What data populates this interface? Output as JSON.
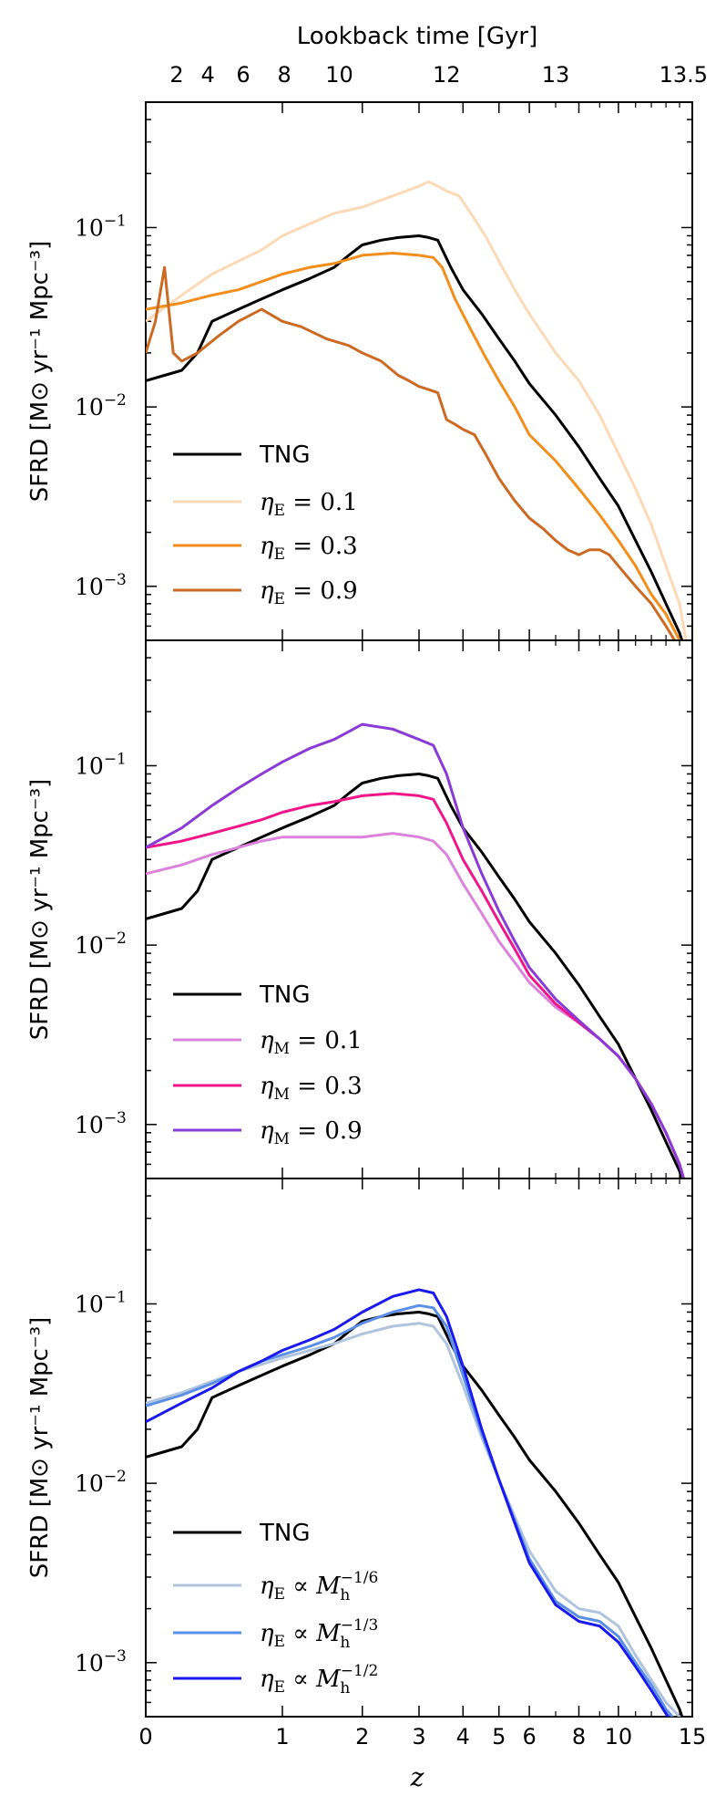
{
  "chart_data": {
    "type": "line",
    "top_axis": {
      "label": "Lookback time [Gyr]",
      "ticks": [
        {
          "label": "2",
          "z": 0.17
        },
        {
          "label": "4",
          "z": 0.37
        },
        {
          "label": "6",
          "z": 0.64
        },
        {
          "label": "8",
          "z": 1.02
        },
        {
          "label": "10",
          "z": 1.67
        },
        {
          "label": "12",
          "z": 3.6
        },
        {
          "label": "13",
          "z": 7.0
        },
        {
          "label": "13.5",
          "z": 14.3
        }
      ]
    },
    "x_axis": {
      "label": "z",
      "scale": "log(1+z)",
      "range": [
        0,
        15
      ],
      "ticks": [
        "0",
        "1",
        "2",
        "3",
        "4",
        "5",
        "6",
        "8",
        "10",
        "15"
      ],
      "tick_values": [
        0,
        1,
        2,
        3,
        4,
        5,
        6,
        8,
        10,
        15
      ]
    },
    "y_axis": {
      "label": "SFRD [M⊙ yr⁻¹ Mpc⁻³]",
      "scale": "log",
      "range": [
        0.0005,
        0.5
      ],
      "ticks": [
        {
          "base": "10",
          "exp": "−1",
          "value": 0.1
        },
        {
          "base": "10",
          "exp": "−2",
          "value": 0.01
        },
        {
          "base": "10",
          "exp": "−3",
          "value": 0.001
        }
      ]
    },
    "panels": [
      {
        "legend_position": "lower-left",
        "series": [
          {
            "name": "TNG",
            "color": "#000000",
            "x": [
              0,
              0.1,
              0.2,
              0.3,
              0.4,
              0.6,
              0.8,
              1.0,
              1.3,
              1.6,
              1.8,
              2.0,
              2.3,
              2.6,
              3.0,
              3.2,
              3.4,
              3.7,
              4.0,
              4.5,
              5.0,
              5.5,
              6.0,
              7.0,
              8.0,
              9.0,
              10.0,
              11.0,
              12.0,
              13.0,
              14.0,
              14.4
            ],
            "y": [
              0.014,
              0.015,
              0.016,
              0.02,
              0.03,
              0.035,
              0.04,
              0.045,
              0.052,
              0.06,
              0.07,
              0.08,
              0.085,
              0.088,
              0.09,
              0.088,
              0.085,
              0.06,
              0.045,
              0.033,
              0.024,
              0.018,
              0.0135,
              0.009,
              0.006,
              0.004,
              0.0028,
              0.0018,
              0.0012,
              0.0008,
              0.00055,
              0.00045
            ]
          },
          {
            "name": "ηE = 0.1",
            "color": "#fdd9b5",
            "x": [
              0,
              0.2,
              0.4,
              0.6,
              0.8,
              1.0,
              1.3,
              1.6,
              2.0,
              2.5,
              3.0,
              3.2,
              3.4,
              3.6,
              3.9,
              4.2,
              4.6,
              5.0,
              5.5,
              6.0,
              7.0,
              8.0,
              9.0,
              10.0,
              11.0,
              12.0,
              13.0,
              14.0,
              14.5
            ],
            "y": [
              0.03,
              0.042,
              0.055,
              0.065,
              0.075,
              0.09,
              0.105,
              0.12,
              0.13,
              0.15,
              0.17,
              0.18,
              0.17,
              0.16,
              0.15,
              0.12,
              0.09,
              0.065,
              0.045,
              0.033,
              0.02,
              0.014,
              0.009,
              0.0055,
              0.0035,
              0.0022,
              0.0013,
              0.0008,
              0.0005
            ]
          },
          {
            "name": "ηE = 0.3",
            "color": "#f28e1c",
            "x": [
              0,
              0.2,
              0.4,
              0.6,
              0.8,
              1.0,
              1.3,
              1.6,
              2.0,
              2.5,
              3.0,
              3.3,
              3.5,
              3.8,
              4.2,
              4.6,
              5.0,
              5.5,
              6.0,
              7.0,
              8.0,
              9.0,
              10.0,
              11.0,
              12.0,
              13.0,
              14.0,
              14.5
            ],
            "y": [
              0.035,
              0.038,
              0.042,
              0.045,
              0.05,
              0.055,
              0.06,
              0.063,
              0.07,
              0.072,
              0.07,
              0.068,
              0.06,
              0.04,
              0.027,
              0.019,
              0.014,
              0.01,
              0.007,
              0.005,
              0.0035,
              0.0025,
              0.0018,
              0.0013,
              0.0009,
              0.0007,
              0.0005,
              0.0004
            ]
          },
          {
            "name": "ηE = 0.9",
            "color": "#cc6a22",
            "x": [
              0,
              0.05,
              0.1,
              0.15,
              0.2,
              0.3,
              0.45,
              0.6,
              0.8,
              1.0,
              1.2,
              1.5,
              1.8,
              2.0,
              2.3,
              2.6,
              2.8,
              3.0,
              3.2,
              3.4,
              3.6,
              3.8,
              4.0,
              4.3,
              4.6,
              5.0,
              5.5,
              6.0,
              6.5,
              7.0,
              7.5,
              8.0,
              8.5,
              9.0,
              9.5,
              10.0,
              11.0,
              12.0,
              13.0,
              14.0,
              14.5
            ],
            "y": [
              0.02,
              0.03,
              0.06,
              0.02,
              0.018,
              0.02,
              0.025,
              0.03,
              0.035,
              0.03,
              0.028,
              0.024,
              0.022,
              0.02,
              0.018,
              0.015,
              0.014,
              0.013,
              0.0125,
              0.012,
              0.0085,
              0.008,
              0.0075,
              0.007,
              0.0055,
              0.004,
              0.003,
              0.0024,
              0.0021,
              0.0018,
              0.0016,
              0.0015,
              0.0016,
              0.0016,
              0.0015,
              0.0013,
              0.001,
              0.0008,
              0.0006,
              0.00045,
              0.0004
            ]
          }
        ]
      },
      {
        "legend_position": "lower-left",
        "series": [
          {
            "name": "TNG",
            "color": "#000000",
            "x": [
              0,
              0.1,
              0.2,
              0.3,
              0.4,
              0.6,
              0.8,
              1.0,
              1.3,
              1.6,
              1.8,
              2.0,
              2.3,
              2.6,
              3.0,
              3.2,
              3.4,
              3.7,
              4.0,
              4.5,
              5.0,
              5.5,
              6.0,
              7.0,
              8.0,
              9.0,
              10.0,
              11.0,
              12.0,
              13.0,
              14.0,
              14.4
            ],
            "y": [
              0.014,
              0.015,
              0.016,
              0.02,
              0.03,
              0.035,
              0.04,
              0.045,
              0.052,
              0.06,
              0.07,
              0.08,
              0.085,
              0.088,
              0.09,
              0.088,
              0.085,
              0.06,
              0.045,
              0.033,
              0.024,
              0.018,
              0.0135,
              0.009,
              0.006,
              0.004,
              0.0028,
              0.0018,
              0.0012,
              0.0008,
              0.00055,
              0.00045
            ]
          },
          {
            "name": "ηM = 0.1",
            "color": "#dc82dc",
            "x": [
              0,
              0.2,
              0.4,
              0.6,
              0.8,
              1.0,
              1.3,
              1.6,
              2.0,
              2.5,
              3.0,
              3.3,
              3.6,
              4.0,
              4.5,
              5.0,
              5.5,
              6.0,
              7.0,
              8.0,
              9.0,
              10.0,
              11.0,
              12.0,
              13.0,
              14.0,
              14.5
            ],
            "y": [
              0.025,
              0.028,
              0.032,
              0.035,
              0.038,
              0.04,
              0.04,
              0.04,
              0.04,
              0.042,
              0.04,
              0.038,
              0.032,
              0.022,
              0.015,
              0.0105,
              0.008,
              0.0062,
              0.0045,
              0.0037,
              0.003,
              0.0024,
              0.0018,
              0.0013,
              0.0009,
              0.0006,
              0.00045
            ]
          },
          {
            "name": "ηM = 0.3",
            "color": "#f0168a",
            "x": [
              0,
              0.2,
              0.4,
              0.6,
              0.8,
              1.0,
              1.3,
              1.6,
              2.0,
              2.5,
              3.0,
              3.3,
              3.6,
              4.0,
              4.5,
              5.0,
              5.5,
              6.0,
              7.0,
              8.0,
              9.0,
              10.0,
              11.0,
              12.0,
              13.0,
              14.0,
              14.5
            ],
            "y": [
              0.035,
              0.038,
              0.042,
              0.046,
              0.05,
              0.055,
              0.06,
              0.063,
              0.068,
              0.07,
              0.068,
              0.065,
              0.048,
              0.03,
              0.02,
              0.0135,
              0.0095,
              0.0068,
              0.0047,
              0.0037,
              0.003,
              0.0024,
              0.0018,
              0.0013,
              0.0009,
              0.0006,
              0.00045
            ]
          },
          {
            "name": "ηM = 0.9",
            "color": "#8a3ad6",
            "x": [
              0,
              0.2,
              0.4,
              0.6,
              0.8,
              1.0,
              1.3,
              1.6,
              2.0,
              2.5,
              3.0,
              3.3,
              3.6,
              4.0,
              4.5,
              5.0,
              5.5,
              6.0,
              7.0,
              8.0,
              9.0,
              10.0,
              11.0,
              12.0,
              13.0,
              14.0,
              14.5
            ],
            "y": [
              0.035,
              0.045,
              0.06,
              0.075,
              0.09,
              0.105,
              0.125,
              0.14,
              0.17,
              0.16,
              0.14,
              0.13,
              0.09,
              0.045,
              0.025,
              0.0155,
              0.0105,
              0.0075,
              0.005,
              0.0038,
              0.003,
              0.0024,
              0.0018,
              0.0013,
              0.0009,
              0.0006,
              0.00045
            ]
          }
        ]
      },
      {
        "legend_position": "lower-left",
        "series": [
          {
            "name": "TNG",
            "color": "#000000",
            "x": [
              0,
              0.1,
              0.2,
              0.3,
              0.4,
              0.6,
              0.8,
              1.0,
              1.3,
              1.6,
              1.8,
              2.0,
              2.3,
              2.6,
              3.0,
              3.2,
              3.4,
              3.7,
              4.0,
              4.5,
              5.0,
              5.5,
              6.0,
              7.0,
              8.0,
              9.0,
              10.0,
              11.0,
              12.0,
              13.0,
              14.0,
              14.4
            ],
            "y": [
              0.014,
              0.015,
              0.016,
              0.02,
              0.03,
              0.035,
              0.04,
              0.045,
              0.052,
              0.06,
              0.07,
              0.08,
              0.085,
              0.088,
              0.09,
              0.088,
              0.085,
              0.06,
              0.045,
              0.033,
              0.024,
              0.018,
              0.0135,
              0.009,
              0.006,
              0.004,
              0.0028,
              0.0018,
              0.0012,
              0.0008,
              0.00055,
              0.00045
            ]
          },
          {
            "name": "ηE ∝ Mh^−1/6",
            "color": "#b0c4de",
            "x": [
              0,
              0.2,
              0.4,
              0.6,
              0.8,
              1.0,
              1.3,
              1.6,
              2.0,
              2.5,
              3.0,
              3.3,
              3.6,
              4.0,
              4.5,
              5.0,
              5.5,
              6.0,
              7.0,
              8.0,
              9.0,
              10.0,
              11.0,
              12.0,
              13.0,
              14.0,
              14.5
            ],
            "y": [
              0.028,
              0.032,
              0.037,
              0.042,
              0.046,
              0.05,
              0.055,
              0.06,
              0.068,
              0.075,
              0.078,
              0.075,
              0.06,
              0.035,
              0.018,
              0.0105,
              0.0065,
              0.0042,
              0.0025,
              0.002,
              0.0019,
              0.0016,
              0.0011,
              0.0008,
              0.0006,
              0.0005,
              0.0004
            ]
          },
          {
            "name": "ηE ∝ Mh^−1/3",
            "color": "#5a8fe8",
            "x": [
              0,
              0.2,
              0.4,
              0.6,
              0.8,
              1.0,
              1.3,
              1.6,
              2.0,
              2.5,
              3.0,
              3.3,
              3.6,
              4.0,
              4.5,
              5.0,
              5.5,
              6.0,
              7.0,
              8.0,
              9.0,
              10.0,
              11.0,
              12.0,
              13.0,
              14.0,
              14.5
            ],
            "y": [
              0.027,
              0.031,
              0.036,
              0.042,
              0.048,
              0.052,
              0.058,
              0.065,
              0.078,
              0.09,
              0.098,
              0.095,
              0.075,
              0.04,
              0.019,
              0.0105,
              0.0062,
              0.0038,
              0.0022,
              0.0018,
              0.0017,
              0.0014,
              0.001,
              0.00075,
              0.00055,
              0.00045,
              0.0004
            ]
          },
          {
            "name": "ηE ∝ Mh^−1/2",
            "color": "#1a1aee",
            "x": [
              0,
              0.2,
              0.4,
              0.6,
              0.8,
              1.0,
              1.3,
              1.6,
              2.0,
              2.5,
              3.0,
              3.3,
              3.6,
              4.0,
              4.5,
              5.0,
              5.5,
              6.0,
              7.0,
              8.0,
              9.0,
              10.0,
              11.0,
              12.0,
              13.0,
              14.0,
              14.5
            ],
            "y": [
              0.022,
              0.028,
              0.034,
              0.042,
              0.048,
              0.055,
              0.063,
              0.072,
              0.09,
              0.11,
              0.12,
              0.115,
              0.085,
              0.045,
              0.02,
              0.0105,
              0.006,
              0.0036,
              0.0021,
              0.0017,
              0.0016,
              0.0013,
              0.00095,
              0.0007,
              0.00052,
              0.00042,
              0.00038
            ]
          }
        ]
      }
    ]
  },
  "legend_labels": {
    "panel1": {
      "tng": "TNG",
      "s1": {
        "sym": "η",
        "sub": "E",
        "rest": " = 0.1"
      },
      "s2": {
        "sym": "η",
        "sub": "E",
        "rest": " = 0.3"
      },
      "s3": {
        "sym": "η",
        "sub": "E",
        "rest": " = 0.9"
      }
    },
    "panel2": {
      "tng": "TNG",
      "s1": {
        "sym": "η",
        "sub": "M",
        "rest": " = 0.1"
      },
      "s2": {
        "sym": "η",
        "sub": "M",
        "rest": " = 0.3"
      },
      "s3": {
        "sym": "η",
        "sub": "M",
        "rest": " = 0.9"
      }
    },
    "panel3": {
      "tng": "TNG",
      "s1": {
        "sym": "η",
        "sub": "E",
        "prop": " ∝ ",
        "m": "M",
        "msub": "h",
        "exp": "−1/6"
      },
      "s2": {
        "sym": "η",
        "sub": "E",
        "prop": " ∝ ",
        "m": "M",
        "msub": "h",
        "exp": "−1/3"
      },
      "s3": {
        "sym": "η",
        "sub": "E",
        "prop": " ∝ ",
        "m": "M",
        "msub": "h",
        "exp": "−1/2"
      }
    }
  }
}
